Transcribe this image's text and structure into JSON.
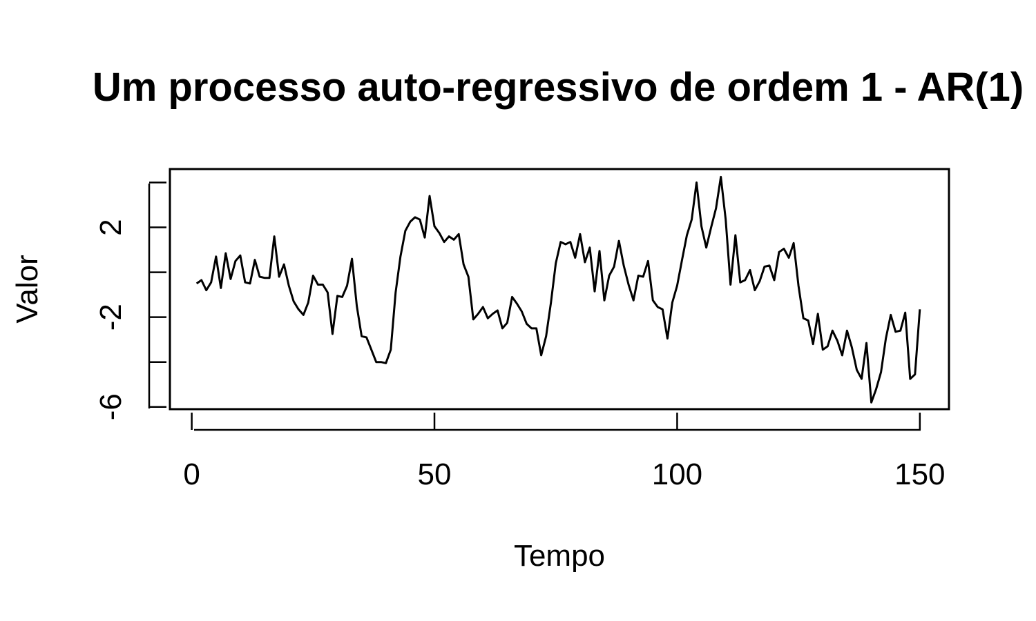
{
  "chart_data": {
    "type": "line",
    "title": "Um processo auto-regressivo de ordem 1 - AR(1)",
    "xlabel": "Tempo",
    "ylabel": "Valor",
    "xlim": [
      -4.5,
      156
    ],
    "ylim": [
      -6.1,
      4.6
    ],
    "x_ticks": [
      0,
      50,
      100,
      150
    ],
    "x_tick_labels": [
      "0",
      "50",
      "100",
      "150"
    ],
    "y_ticks": [
      -6,
      -4,
      -2,
      0,
      2,
      4
    ],
    "y_tick_labels": [
      "-6",
      "",
      "-2",
      "",
      "2",
      ""
    ],
    "grid": false,
    "legend": false,
    "line_color": "#000000",
    "series": [
      {
        "x": [
          1,
          2,
          3,
          4,
          5,
          6,
          7,
          8,
          9,
          10,
          11,
          12,
          13,
          14,
          15,
          16,
          17,
          18,
          19,
          20,
          21,
          22,
          23,
          24,
          25,
          26,
          27,
          28,
          29,
          30,
          31,
          32,
          33,
          34,
          35,
          36,
          37,
          38,
          39,
          40,
          41,
          42,
          43,
          44,
          45,
          46,
          47,
          48,
          49,
          50,
          51,
          52,
          53,
          54,
          55,
          56,
          57,
          58,
          59,
          60,
          61,
          62,
          63,
          64,
          65,
          66,
          67,
          68,
          69,
          70,
          71,
          72,
          73,
          74,
          75,
          76,
          77,
          78,
          79,
          80,
          81,
          82,
          83,
          84,
          85,
          86,
          87,
          88,
          89,
          90,
          91,
          92,
          93,
          94,
          95,
          96,
          97,
          98,
          99,
          100,
          101,
          102,
          103,
          104,
          105,
          106,
          107,
          108,
          109,
          110,
          111,
          112,
          113,
          114,
          115,
          116,
          117,
          118,
          119,
          120,
          121,
          122,
          123,
          124,
          125,
          126,
          127,
          128,
          129,
          130,
          131,
          132,
          133,
          134,
          135,
          136,
          137,
          138,
          139,
          140,
          141,
          142,
          143,
          144,
          145,
          146,
          147,
          148,
          149,
          150
        ],
        "values": [
          -0.5,
          -0.35,
          -0.8,
          -0.45,
          0.7,
          -0.7,
          0.85,
          -0.3,
          0.5,
          0.75,
          -0.45,
          -0.5,
          0.55,
          -0.2,
          -0.25,
          -0.25,
          1.6,
          -0.2,
          0.35,
          -0.6,
          -1.3,
          -1.65,
          -1.9,
          -1.35,
          -0.15,
          -0.55,
          -0.55,
          -0.9,
          -2.75,
          -1.05,
          -1.1,
          -0.6,
          0.6,
          -1.5,
          -2.85,
          -2.9,
          -3.45,
          -4.0,
          -4.0,
          -4.05,
          -3.45,
          -0.9,
          0.7,
          1.85,
          2.25,
          2.45,
          2.35,
          1.55,
          3.4,
          2.05,
          1.75,
          1.35,
          1.6,
          1.45,
          1.7,
          0.35,
          -0.2,
          -2.1,
          -1.85,
          -1.55,
          -2.05,
          -1.85,
          -1.7,
          -2.5,
          -2.25,
          -1.1,
          -1.4,
          -1.75,
          -2.3,
          -2.5,
          -2.5,
          -3.7,
          -2.85,
          -1.35,
          0.4,
          1.35,
          1.25,
          1.35,
          0.65,
          1.7,
          0.45,
          1.1,
          -0.85,
          0.95,
          -1.25,
          -0.15,
          0.25,
          1.4,
          0.3,
          -0.55,
          -1.25,
          -0.15,
          -0.2,
          0.5,
          -1.25,
          -1.55,
          -1.65,
          -2.95,
          -1.35,
          -0.6,
          0.55,
          1.65,
          2.35,
          4.0,
          2.05,
          1.1,
          2.0,
          2.85,
          4.25,
          2.35,
          -0.55,
          1.65,
          -0.45,
          -0.35,
          0.1,
          -0.8,
          -0.4,
          0.25,
          0.3,
          -0.35,
          0.9,
          1.05,
          0.65,
          1.3,
          -0.6,
          -2.05,
          -2.15,
          -3.2,
          -1.85,
          -3.45,
          -3.3,
          -2.6,
          -3.05,
          -3.7,
          -2.6,
          -3.35,
          -4.35,
          -4.75,
          -3.15,
          -5.8,
          -5.2,
          -4.45,
          -2.95,
          -1.9,
          -2.65,
          -2.6,
          -1.8,
          -4.75,
          -4.55,
          -1.65
        ]
      }
    ]
  }
}
